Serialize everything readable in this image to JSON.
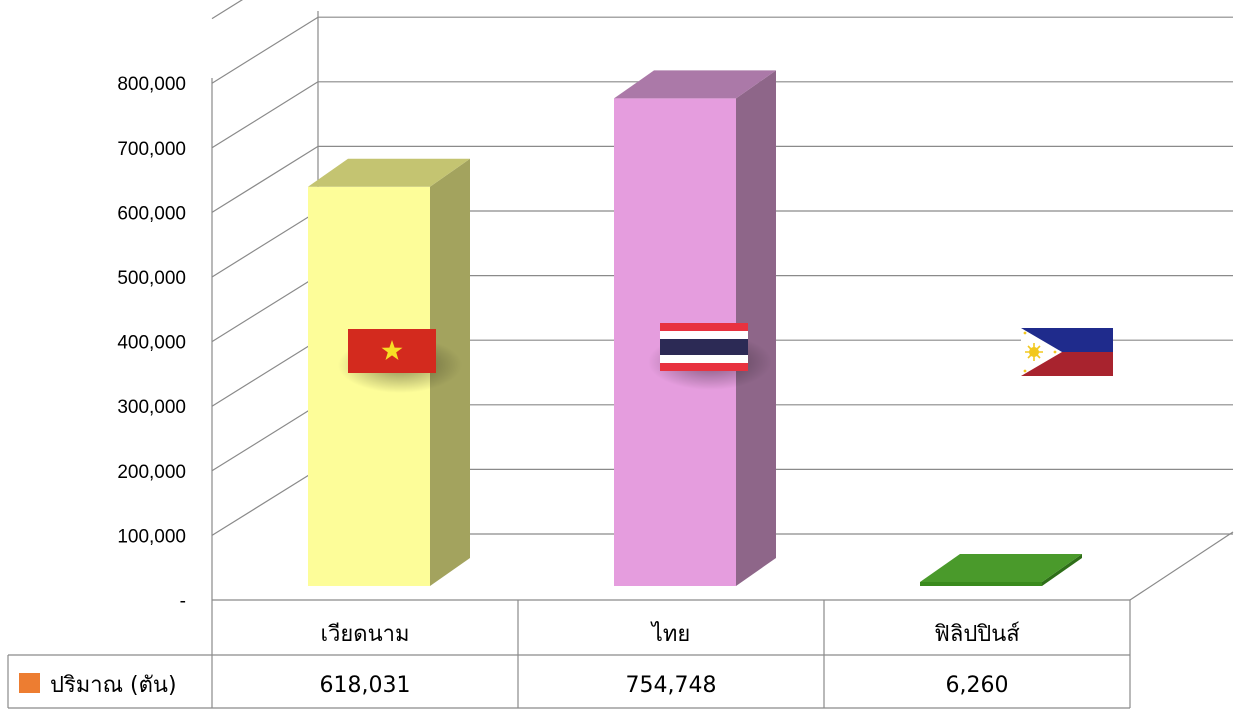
{
  "chart_data": {
    "type": "bar",
    "categories": [
      "เวียดนาม",
      "ไทย",
      "ฟิลิปปินส์"
    ],
    "series": [
      {
        "name": "ปริมาณ (ตัน)",
        "values": [
          618031,
          754748,
          6260
        ],
        "legend_color": "#ED7D31"
      }
    ],
    "value_labels": [
      "618,031",
      "754,748",
      "6,260"
    ],
    "y_ticks": [
      "-",
      "100,000",
      "200,000",
      "300,000",
      "400,000",
      "500,000",
      "600,000",
      "700,000",
      "800,000"
    ],
    "ylim": [
      0,
      900000
    ],
    "grid": true,
    "style": "3d-column",
    "legend": "data-table-left",
    "bar_colors": [
      {
        "front": "#FDFD99",
        "top": "#C4C471",
        "side": "#A3A35E"
      },
      {
        "front": "#E59DDE",
        "top": "#AB79A8",
        "side": "#8E6689"
      },
      {
        "front": "#3A8A1D",
        "top": "#4A9A2B",
        "side": "#2E6E18"
      }
    ],
    "flags": [
      "vietnam-flag",
      "thailand-flag",
      "philippines-flag"
    ]
  }
}
